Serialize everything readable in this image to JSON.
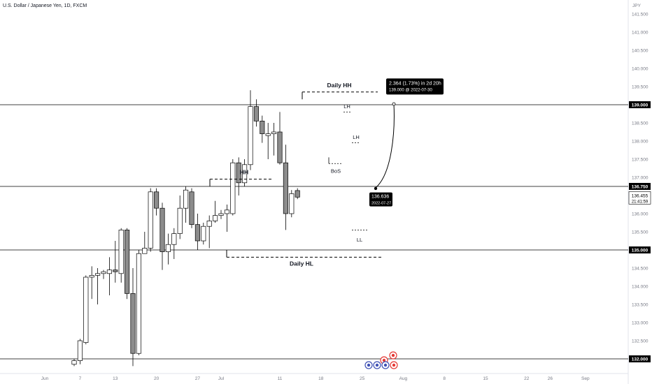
{
  "header": {
    "title": "U.S. Dollar / Japanese Yen, 1D, FXCM",
    "currency": "JPY"
  },
  "chart_data": {
    "type": "candlestick",
    "ylim": [
      131.8,
      142.0
    ],
    "y_ticks": [
      {
        "value": 141.5,
        "label": "141.500"
      },
      {
        "value": 141.0,
        "label": "141.000"
      },
      {
        "value": 140.5,
        "label": "140.500"
      },
      {
        "value": 140.0,
        "label": "140.000"
      },
      {
        "value": 139.5,
        "label": "139.500"
      },
      {
        "value": 138.5,
        "label": "138.500"
      },
      {
        "value": 138.0,
        "label": "138.000"
      },
      {
        "value": 137.5,
        "label": "137.500"
      },
      {
        "value": 137.0,
        "label": "137.000"
      },
      {
        "value": 136.0,
        "label": "136.000"
      },
      {
        "value": 135.5,
        "label": "135.500"
      },
      {
        "value": 134.5,
        "label": "134.500"
      },
      {
        "value": 134.0,
        "label": "134.000"
      },
      {
        "value": 133.5,
        "label": "133.500"
      },
      {
        "value": 133.0,
        "label": "133.000"
      },
      {
        "value": 132.5,
        "label": "132.500"
      }
    ],
    "x_ticks": [
      {
        "label": "Jun",
        "day": 1
      },
      {
        "label": "7",
        "day": 7
      },
      {
        "label": "13",
        "day": 13
      },
      {
        "label": "20",
        "day": 20
      },
      {
        "label": "27",
        "day": 27
      },
      {
        "label": "Jul",
        "day": 31
      },
      {
        "label": "11",
        "day": 41
      },
      {
        "label": "18",
        "day": 48
      },
      {
        "label": "25",
        "day": 55
      },
      {
        "label": "Aug",
        "day": 62
      },
      {
        "label": "8",
        "day": 69
      },
      {
        "label": "15",
        "day": 76
      },
      {
        "label": "22",
        "day": 83
      },
      {
        "label": "26",
        "day": 87
      },
      {
        "label": "Sep",
        "day": 93
      }
    ],
    "horizontal_levels": [
      {
        "value": 139.0,
        "label": "139.000"
      },
      {
        "value": 136.75,
        "label": "136.750"
      },
      {
        "value": 135.0,
        "label": "135.000"
      },
      {
        "value": 132.0,
        "label": "132.000"
      }
    ],
    "current_price": {
      "value": 136.455,
      "label": "136.455",
      "countdown": "21:41:59"
    },
    "candles": [
      {
        "day": 6,
        "o": 131.85,
        "h": 132.0,
        "l": 131.8,
        "c": 131.95
      },
      {
        "day": 7,
        "o": 131.95,
        "h": 132.55,
        "l": 131.85,
        "c": 132.5
      },
      {
        "day": 8,
        "o": 132.45,
        "h": 134.3,
        "l": 132.4,
        "c": 134.25
      },
      {
        "day": 9,
        "o": 134.25,
        "h": 134.55,
        "l": 133.65,
        "c": 134.3
      },
      {
        "day": 10,
        "o": 134.3,
        "h": 134.5,
        "l": 133.5,
        "c": 134.35
      },
      {
        "day": 11,
        "o": 134.35,
        "h": 134.45,
        "l": 134.2,
        "c": 134.4
      },
      {
        "day": 12,
        "o": 134.35,
        "h": 134.8,
        "l": 133.75,
        "c": 134.45
      },
      {
        "day": 13,
        "o": 134.45,
        "h": 135.25,
        "l": 134.1,
        "c": 134.4
      },
      {
        "day": 14,
        "o": 134.35,
        "h": 135.6,
        "l": 134.1,
        "c": 135.55
      },
      {
        "day": 15,
        "o": 135.55,
        "h": 135.6,
        "l": 133.65,
        "c": 133.8
      },
      {
        "day": 16,
        "o": 133.8,
        "h": 134.5,
        "l": 131.8,
        "c": 132.15
      },
      {
        "day": 17,
        "o": 132.15,
        "h": 135.0,
        "l": 132.1,
        "c": 134.9
      },
      {
        "day": 18,
        "o": 134.9,
        "h": 135.5,
        "l": 134.9,
        "c": 135.05
      },
      {
        "day": 19,
        "o": 135.05,
        "h": 136.7,
        "l": 134.95,
        "c": 136.6
      },
      {
        "day": 20,
        "o": 136.6,
        "h": 136.7,
        "l": 135.95,
        "c": 136.15
      },
      {
        "day": 21,
        "o": 136.15,
        "h": 136.3,
        "l": 134.45,
        "c": 134.95
      },
      {
        "day": 22,
        "o": 134.95,
        "h": 135.45,
        "l": 134.6,
        "c": 135.15
      },
      {
        "day": 23,
        "o": 135.15,
        "h": 135.6,
        "l": 134.75,
        "c": 135.45
      },
      {
        "day": 24,
        "o": 135.45,
        "h": 136.5,
        "l": 135.3,
        "c": 136.15
      },
      {
        "day": 25,
        "o": 136.15,
        "h": 136.75,
        "l": 135.75,
        "c": 136.65
      },
      {
        "day": 26,
        "o": 136.6,
        "h": 136.7,
        "l": 135.6,
        "c": 135.7
      },
      {
        "day": 27,
        "o": 135.7,
        "h": 136.0,
        "l": 135.0,
        "c": 135.25
      },
      {
        "day": 28,
        "o": 135.25,
        "h": 135.75,
        "l": 135.15,
        "c": 135.65
      },
      {
        "day": 29,
        "o": 135.65,
        "h": 135.95,
        "l": 135.05,
        "c": 135.8
      },
      {
        "day": 30,
        "o": 135.8,
        "h": 136.35,
        "l": 135.75,
        "c": 135.95
      },
      {
        "day": 31,
        "o": 135.95,
        "h": 136.1,
        "l": 135.85,
        "c": 136.0
      },
      {
        "day": 32,
        "o": 136.0,
        "h": 136.25,
        "l": 135.5,
        "c": 136.1
      },
      {
        "day": 33,
        "o": 136.0,
        "h": 137.5,
        "l": 135.95,
        "c": 137.4
      },
      {
        "day": 34,
        "o": 137.4,
        "h": 137.55,
        "l": 136.5,
        "c": 136.85
      },
      {
        "day": 35,
        "o": 136.85,
        "h": 137.5,
        "l": 136.75,
        "c": 137.35
      },
      {
        "day": 36,
        "o": 137.35,
        "h": 139.4,
        "l": 137.2,
        "c": 138.95
      },
      {
        "day": 37,
        "o": 138.95,
        "h": 139.15,
        "l": 138.4,
        "c": 138.55
      },
      {
        "day": 38,
        "o": 138.55,
        "h": 138.7,
        "l": 137.95,
        "c": 138.2
      },
      {
        "day": 39,
        "o": 138.15,
        "h": 138.5,
        "l": 137.5,
        "c": 138.2
      },
      {
        "day": 40,
        "o": 138.2,
        "h": 138.5,
        "l": 137.6,
        "c": 138.25
      },
      {
        "day": 41,
        "o": 138.25,
        "h": 138.8,
        "l": 137.35,
        "c": 137.4
      },
      {
        "day": 42,
        "o": 137.4,
        "h": 137.9,
        "l": 135.55,
        "c": 136.0
      },
      {
        "day": 43,
        "o": 136.0,
        "h": 136.65,
        "l": 135.9,
        "c": 136.55
      },
      {
        "day": 44,
        "o": 136.636,
        "h": 136.7,
        "l": 136.4,
        "c": 136.455
      }
    ],
    "annotations": [
      {
        "text": "Daily HH",
        "value": 139.35,
        "day": 40
      },
      {
        "text": "HH",
        "value": 136.95,
        "day": 29
      },
      {
        "text": "Daily HL",
        "value": 134.8,
        "day": 37
      },
      {
        "text": "LH",
        "value": 138.85,
        "day": 42
      },
      {
        "text": "LH",
        "value": 138.0,
        "day": 43
      },
      {
        "text": "BoS",
        "value": 137.3,
        "day": 41
      },
      {
        "text": "LL",
        "value": 135.4,
        "day": 43
      }
    ],
    "projection": {
      "measure_label": "2.364 (1.73%) in 2d 20h",
      "target_label": "139.000 @ 2022-07-30",
      "start_label": "136.636",
      "start_date": "2022-07-27",
      "start_value": 136.636,
      "target_value": 139.0
    },
    "events_count": 6,
    "colors": {
      "up_fill": "#ffffff",
      "down_fill": "#8c8c8c",
      "wick": "#000000",
      "text": "#131722",
      "axis_text": "#787b86",
      "label_bg": "#000000",
      "event_red": "#e53935",
      "event_blue": "#3f51b5"
    }
  }
}
